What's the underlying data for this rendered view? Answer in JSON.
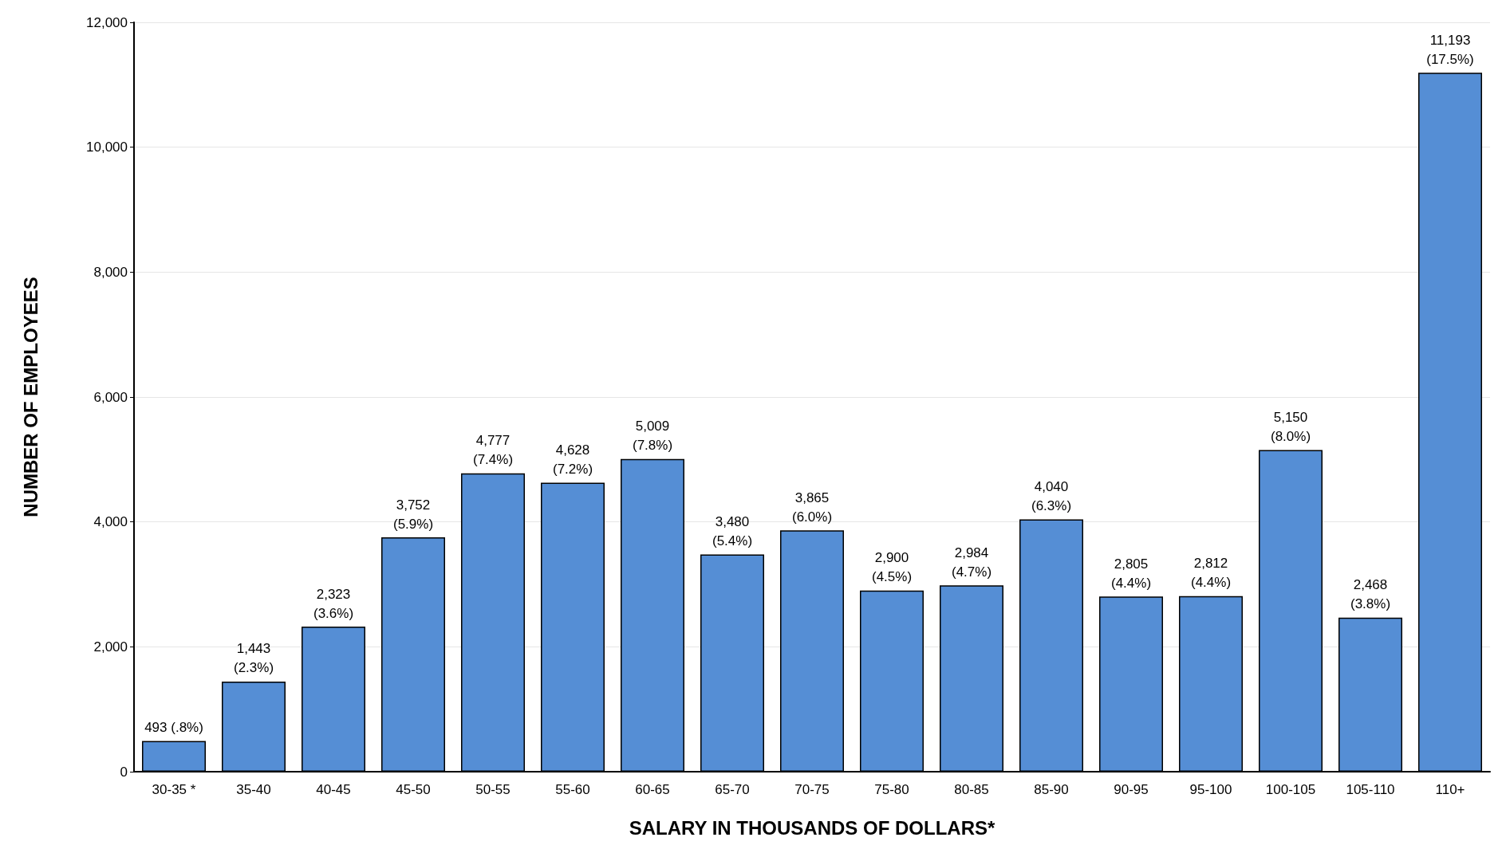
{
  "chart_data": {
    "type": "bar",
    "xlabel": "SALARY IN THOUSANDS OF DOLLARS*",
    "ylabel": "NUMBER OF EMPLOYEES",
    "categories": [
      "30-35 *",
      "35-40",
      "40-45",
      "45-50",
      "50-55",
      "55-60",
      "60-65",
      "65-70",
      "70-75",
      "75-80",
      "80-85",
      "85-90",
      "90-95",
      "95-100",
      "100-105",
      "105-110",
      "110+"
    ],
    "values": [
      493,
      1443,
      2323,
      3752,
      4777,
      4628,
      5009,
      3480,
      3865,
      2900,
      2984,
      4040,
      2805,
      2812,
      5150,
      2468,
      11193
    ],
    "value_labels": [
      "493 (.8%)",
      "1,443\n(2.3%)",
      "2,323\n(3.6%)",
      "3,752\n(5.9%)",
      "4,777\n(7.4%)",
      "4,628\n(7.2%)",
      "5,009\n(7.8%)",
      "3,480\n(5.4%)",
      "3,865\n(6.0%)",
      "2,900\n(4.5%)",
      "2,984\n(4.7%)",
      "4,040\n(6.3%)",
      "2,805\n(4.4%)",
      "2,812\n(4.4%)",
      "5,150\n(8.0%)",
      "2,468\n(3.8%)",
      "11,193\n(17.5%)"
    ],
    "color": "#558ed5",
    "ylim": [
      0,
      12000
    ],
    "yticks": [
      0,
      {
        "value": 2000,
        "label": "2,000"
      },
      {
        "value": 4000,
        "label": "4,000"
      },
      {
        "value": 6000,
        "label": "6,000"
      },
      {
        "value": 8000,
        "label": "8,000"
      },
      {
        "value": 10000,
        "label": "10,000"
      },
      {
        "value": 12000,
        "label": "12,000"
      }
    ],
    "grid": "y"
  }
}
